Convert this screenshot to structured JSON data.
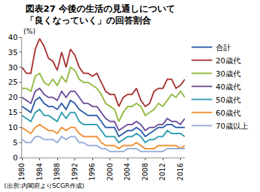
{
  "chart_data": {
    "type": "line",
    "title": "図表27 今後の生活の見通しについて\n「良くなっていく」の回答割合",
    "ylabel": "(%)",
    "source": "(出所:内閣府よりSCGR作成)",
    "x": [
      1980,
      1981,
      1982,
      1983,
      1984,
      1985,
      1986,
      1987,
      1988,
      1989,
      1990,
      1991,
      1992,
      1993,
      1994,
      1995,
      1996,
      1997,
      1998,
      1999,
      2000,
      2001,
      2002,
      2003,
      2004,
      2005,
      2006,
      2007,
      2008,
      2009,
      2010,
      2011,
      2012,
      2013,
      2014,
      2015,
      2016,
      2017
    ],
    "xlim": [
      1980,
      2017
    ],
    "xticks": [
      1980,
      1984,
      1988,
      1992,
      1996,
      2000,
      2004,
      2008,
      2012,
      2016
    ],
    "ylim": [
      0,
      40
    ],
    "yticks": [
      0,
      5,
      10,
      15,
      20,
      25,
      30,
      35,
      40
    ],
    "grid": false,
    "legend": "right",
    "series": [
      {
        "name": "合計",
        "color": "#2a5ba8",
        "values": [
          17,
          16,
          15,
          19,
          20,
          18,
          17,
          17,
          16,
          18,
          16,
          19,
          18,
          16,
          15,
          14,
          14,
          14,
          12,
          10,
          10,
          10,
          7,
          8,
          9,
          9,
          10,
          9,
          7,
          8,
          9,
          10,
          10,
          11,
          11,
          10,
          10,
          10
        ]
      },
      {
        "name": "20歳代",
        "color": "#a83232",
        "values": [
          30,
          28,
          28,
          36,
          39.5,
          37,
          33,
          32,
          29,
          35,
          30,
          36,
          34,
          30,
          28,
          28,
          27,
          28,
          25,
          22,
          21,
          21,
          17,
          20,
          21,
          21,
          23,
          19,
          17,
          18,
          22,
          23,
          23,
          26,
          26,
          23,
          24,
          26
        ]
      },
      {
        "name": "30歳代",
        "color": "#92b83e",
        "values": [
          23,
          23,
          22,
          27,
          28,
          25,
          24,
          26,
          24,
          27,
          25,
          30,
          29,
          26,
          25,
          25,
          24,
          23,
          21,
          18,
          17,
          16,
          12,
          15,
          17,
          17,
          18,
          17,
          14,
          15,
          16,
          18,
          17,
          19,
          21,
          20,
          22,
          20
        ]
      },
      {
        "name": "40歳代",
        "color": "#6b4c9a",
        "values": [
          20,
          19,
          18,
          22,
          23,
          21,
          20,
          20,
          19,
          22,
          20,
          22,
          22,
          20,
          18,
          18,
          17,
          17,
          15,
          13,
          12,
          12,
          9,
          10,
          11,
          11,
          12,
          11,
          9,
          10,
          10,
          11,
          11,
          13,
          12,
          12,
          11,
          13
        ]
      },
      {
        "name": "50歳代",
        "color": "#2a9cb0",
        "values": [
          14,
          13,
          12,
          15,
          16,
          14,
          14,
          13,
          12,
          15,
          13,
          15,
          15,
          12,
          11,
          11,
          11,
          11,
          9,
          7,
          7,
          7,
          5,
          6,
          7,
          7,
          8,
          7,
          5,
          6,
          6,
          7,
          7,
          9,
          8,
          8,
          8,
          7
        ]
      },
      {
        "name": "60歳代",
        "color": "#f08c2c",
        "values": [
          10,
          9,
          8,
          10,
          11,
          10,
          9,
          9,
          8,
          10,
          9,
          10,
          10,
          8,
          7,
          7,
          7,
          7,
          5,
          4,
          4,
          4,
          3,
          4,
          4,
          4,
          5,
          4,
          3,
          3,
          3,
          4,
          4,
          4,
          4,
          4,
          3,
          4
        ]
      },
      {
        "name": "70歳以上",
        "color": "#93acd8",
        "values": [
          6,
          5,
          5,
          7,
          7,
          6,
          6,
          6,
          5,
          7,
          6,
          7,
          7,
          5,
          5,
          4,
          4,
          4,
          3,
          3,
          2,
          2,
          2,
          2,
          3,
          3,
          3,
          2,
          2,
          2,
          2,
          2,
          2,
          3,
          3,
          3,
          3,
          3
        ]
      }
    ]
  }
}
